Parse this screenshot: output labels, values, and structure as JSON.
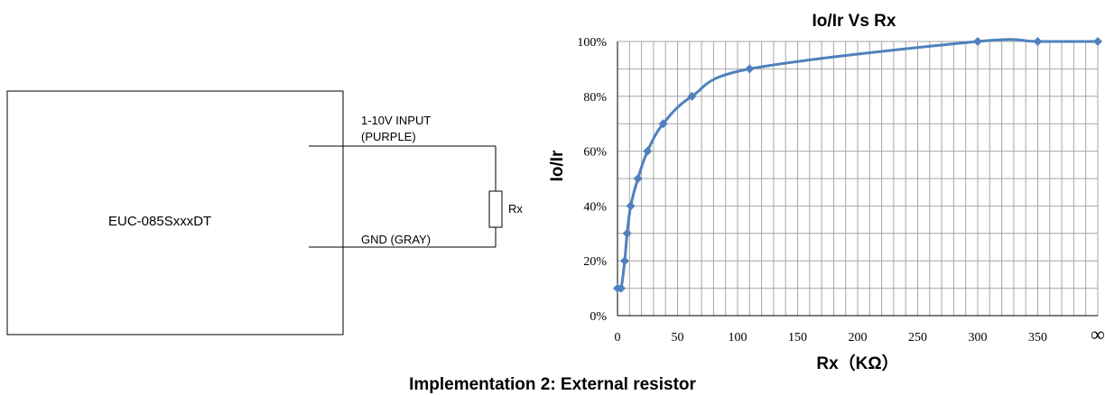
{
  "schematic": {
    "device_label": "EUC-085SxxxDT",
    "input_label": "1-10V INPUT",
    "input_color": "(PURPLE)",
    "gnd_label": "GND (GRAY)",
    "resistor_label": "Rx"
  },
  "caption": "Implementation 2: External resistor",
  "chart_data": {
    "type": "line",
    "title": "Io/Ir Vs Rx",
    "xlabel": "Rx（KΩ）",
    "ylabel": "Io/Ir",
    "x_ticks": [
      "0",
      "50",
      "100",
      "150",
      "200",
      "250",
      "300",
      "350",
      "∞"
    ],
    "y_ticks": [
      "0%",
      "20%",
      "40%",
      "60%",
      "80%",
      "100%"
    ],
    "xlim": [
      0,
      400
    ],
    "ylim": [
      0,
      100
    ],
    "grid": true,
    "series": [
      {
        "color": "#4f81bd",
        "x": [
          0,
          3,
          6,
          8,
          11,
          17,
          25,
          38,
          62,
          110,
          300,
          350,
          400
        ],
        "y": [
          10,
          10,
          20,
          30,
          40,
          50,
          60,
          70,
          80,
          90,
          100,
          100,
          100
        ]
      }
    ]
  }
}
